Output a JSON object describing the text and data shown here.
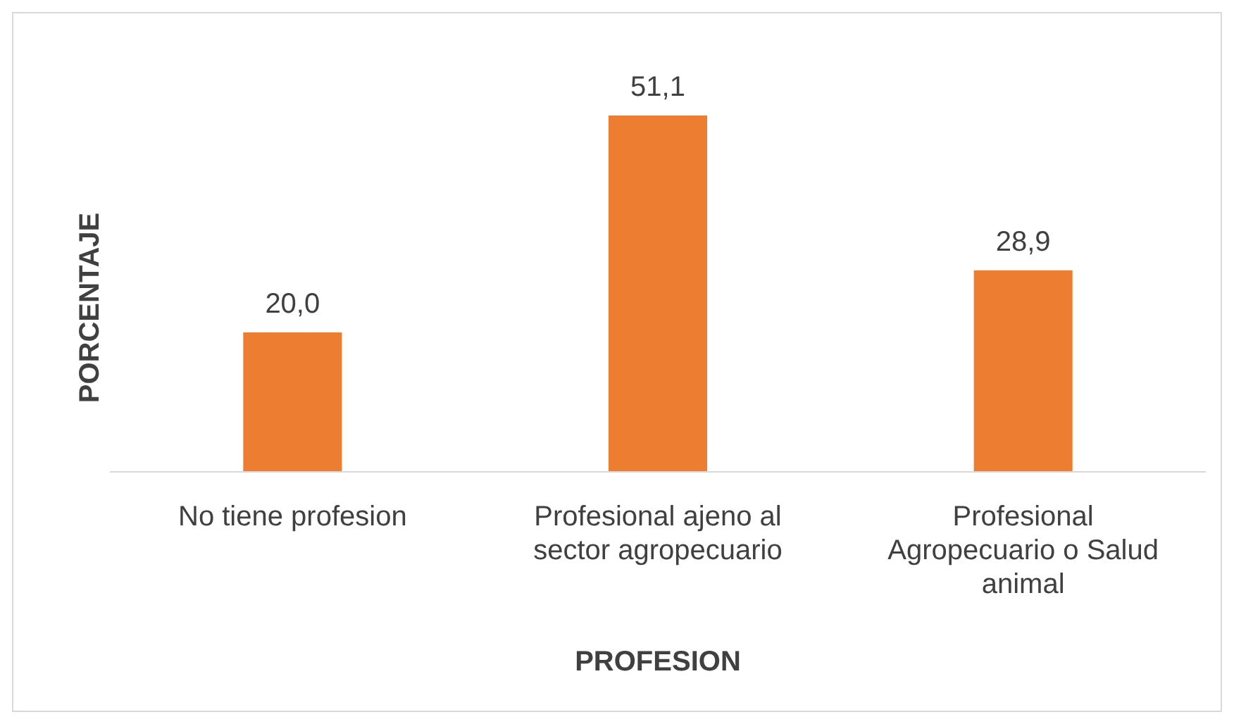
{
  "chart_data": {
    "type": "bar",
    "xlabel": "PROFESION",
    "ylabel": "PORCENTAJE",
    "categories": [
      "No tiene profesion",
      "Profesional ajeno al sector agropecuario",
      "Profesional Agropecuario o Salud animal"
    ],
    "values": [
      20.0,
      51.1,
      28.9
    ],
    "value_labels": [
      "20,0",
      "51,1",
      "28,9"
    ],
    "color": "#ed7d31"
  }
}
